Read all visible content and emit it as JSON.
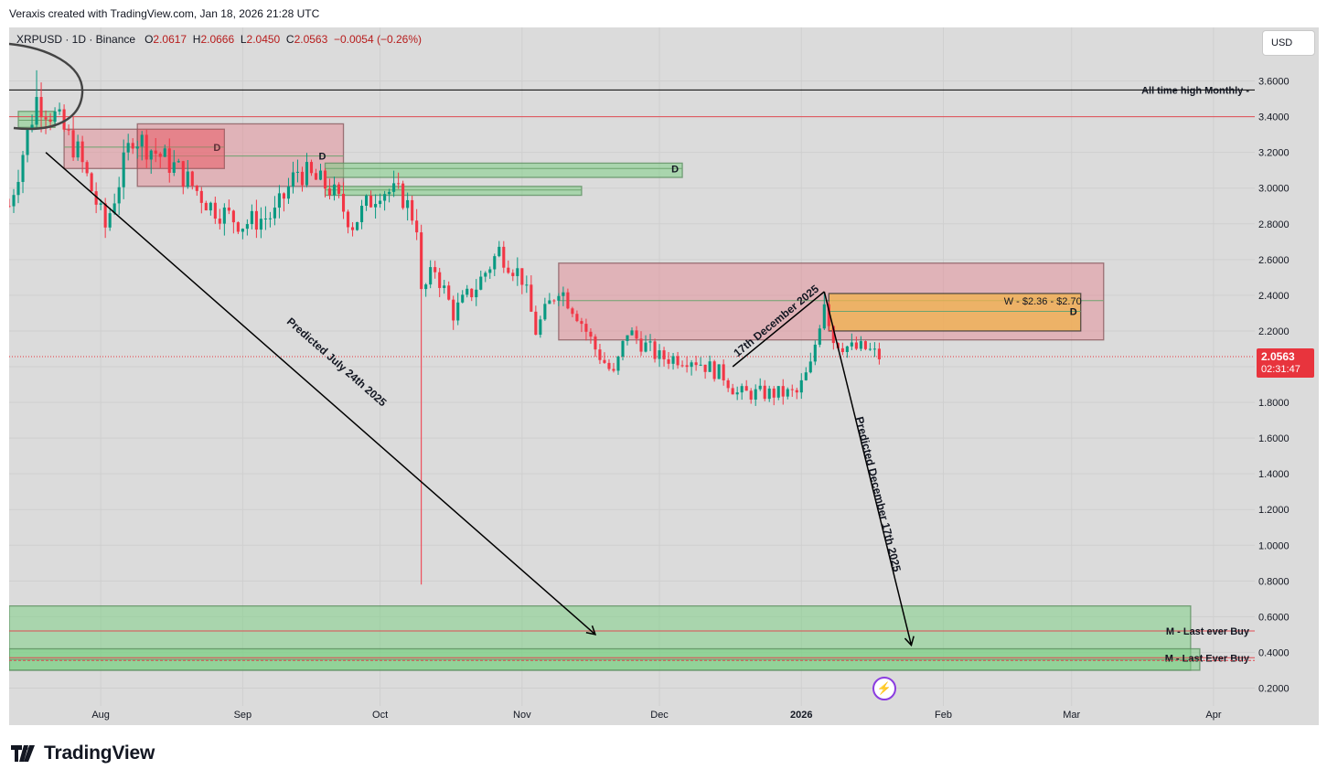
{
  "header": {
    "credit": "Veraxis created with TradingView.com, Jan 18, 2026 21:28 UTC"
  },
  "symbol": {
    "name": "XRPUSD · 1D · Binance",
    "open_label": "O",
    "open": "2.0617",
    "high_label": "H",
    "high": "2.0666",
    "low_label": "L",
    "low": "2.0450",
    "close_label": "C",
    "close": "2.0563",
    "change": "−0.0054 (−0.26%)"
  },
  "currency_button": "USD",
  "last_price": {
    "price": "2.0563",
    "countdown": "02:31:47"
  },
  "footer": {
    "brand": "TradingView"
  },
  "colors": {
    "background": "#dbdbdb",
    "up_candle": "#089981",
    "down_candle": "#f23645",
    "supply_zone": "#e7838f",
    "demand_zone": "#7fcf86",
    "order_block": "#f2b14c",
    "price_tag": "#e8343d"
  },
  "chart_data": {
    "type": "candlestick",
    "y_axis": {
      "min": 0.1,
      "max": 3.9,
      "ticks": [
        "0.2000",
        "0.4000",
        "0.6000",
        "0.8000",
        "1.0000",
        "1.2000",
        "1.4000",
        "1.6000",
        "1.8000",
        "2.0000",
        "2.2000",
        "2.4000",
        "2.6000",
        "2.8000",
        "3.0000",
        "3.2000",
        "3.4000",
        "3.6000"
      ]
    },
    "x_axis": {
      "range": [
        "2025-07-12",
        "2026-04-10"
      ],
      "ticks": [
        {
          "date": "2025-08-01",
          "label": "Aug",
          "bold": false
        },
        {
          "date": "2025-09-01",
          "label": "Sep",
          "bold": false
        },
        {
          "date": "2025-10-01",
          "label": "Oct",
          "bold": false
        },
        {
          "date": "2025-11-01",
          "label": "Nov",
          "bold": false
        },
        {
          "date": "2025-12-01",
          "label": "Dec",
          "bold": false
        },
        {
          "date": "2026-01-01",
          "label": "2026",
          "bold": true
        },
        {
          "date": "2026-02-01",
          "label": "Feb",
          "bold": false
        },
        {
          "date": "2026-03-01",
          "label": "Mar",
          "bold": false
        },
        {
          "date": "2026-04-01",
          "label": "Apr",
          "bold": false
        }
      ]
    },
    "anchors": [
      {
        "date": "2025-07-12",
        "close": 2.9
      },
      {
        "date": "2025-07-15",
        "close": 3.2
      },
      {
        "date": "2025-07-18",
        "close": 3.5
      },
      {
        "date": "2025-07-22",
        "close": 3.4
      },
      {
        "date": "2025-07-27",
        "close": 3.2
      },
      {
        "date": "2025-08-02",
        "close": 2.78
      },
      {
        "date": "2025-08-08",
        "close": 3.3
      },
      {
        "date": "2025-08-13",
        "close": 3.2
      },
      {
        "date": "2025-08-18",
        "close": 3.1
      },
      {
        "date": "2025-08-25",
        "close": 2.9
      },
      {
        "date": "2025-09-01",
        "close": 2.8
      },
      {
        "date": "2025-09-08",
        "close": 2.85
      },
      {
        "date": "2025-09-13",
        "close": 3.1
      },
      {
        "date": "2025-09-20",
        "close": 3.0
      },
      {
        "date": "2025-09-25",
        "close": 2.8
      },
      {
        "date": "2025-10-01",
        "close": 3.0
      },
      {
        "date": "2025-10-06",
        "close": 2.95
      },
      {
        "date": "2025-10-09",
        "close": 2.8
      },
      {
        "date": "2025-10-10",
        "close": 2.4
      },
      {
        "date": "2025-10-13",
        "close": 2.55
      },
      {
        "date": "2025-10-17",
        "close": 2.3
      },
      {
        "date": "2025-10-22",
        "close": 2.45
      },
      {
        "date": "2025-10-27",
        "close": 2.65
      },
      {
        "date": "2025-11-01",
        "close": 2.5
      },
      {
        "date": "2025-11-04",
        "close": 2.2
      },
      {
        "date": "2025-11-09",
        "close": 2.45
      },
      {
        "date": "2025-11-13",
        "close": 2.3
      },
      {
        "date": "2025-11-17",
        "close": 2.1
      },
      {
        "date": "2025-11-21",
        "close": 1.95
      },
      {
        "date": "2025-11-24",
        "close": 2.2
      },
      {
        "date": "2025-12-01",
        "close": 2.05
      },
      {
        "date": "2025-12-08",
        "close": 2.05
      },
      {
        "date": "2025-12-15",
        "close": 1.95
      },
      {
        "date": "2025-12-18",
        "close": 1.85
      },
      {
        "date": "2025-12-25",
        "close": 1.85
      },
      {
        "date": "2025-12-31",
        "close": 1.85
      },
      {
        "date": "2026-01-03",
        "close": 2.0
      },
      {
        "date": "2026-01-06",
        "close": 2.38
      },
      {
        "date": "2026-01-08",
        "close": 2.15
      },
      {
        "date": "2026-01-12",
        "close": 2.1
      },
      {
        "date": "2026-01-15",
        "close": 2.1
      },
      {
        "date": "2026-01-18",
        "close": 2.0563
      }
    ],
    "wick_extremes": [
      {
        "date": "2025-07-18",
        "high": 3.66
      },
      {
        "date": "2025-10-10",
        "low": 0.78
      },
      {
        "date": "2026-01-06",
        "high": 2.42
      }
    ],
    "zones": [
      {
        "kind": "supply",
        "from": "2025-08-09",
        "to": "2025-09-23",
        "top": 3.36,
        "bottom": 3.01,
        "label": "D",
        "label_at": "2025-09-20",
        "mid": 3.18
      },
      {
        "kind": "supply",
        "from": "2025-07-24",
        "to": "2025-08-09",
        "top": 3.33,
        "bottom": 3.11,
        "label": "",
        "mid": 3.23
      },
      {
        "kind": "supply",
        "from": "2025-08-09",
        "to": "2025-08-28",
        "top": 3.33,
        "bottom": 3.11,
        "label": "D",
        "label_at": "2025-08-28",
        "mid": 3.23
      },
      {
        "kind": "demand",
        "from": "2025-09-19",
        "to": "2025-12-06",
        "top": 3.14,
        "bottom": 3.06,
        "label": "D",
        "label_at": "2025-12-06",
        "mid": 3.11
      },
      {
        "kind": "demand",
        "from": "2025-09-19",
        "to": "2025-11-14",
        "top": 3.01,
        "bottom": 2.96,
        "label": "",
        "mid": 2.99
      },
      {
        "kind": "demand",
        "from": "2025-07-14",
        "to": "2025-07-22",
        "top": 3.43,
        "bottom": 3.34,
        "label": "",
        "mid": 3.38
      },
      {
        "kind": "supply",
        "from": "2025-11-09",
        "to": "2026-03-08",
        "top": 2.58,
        "bottom": 2.15,
        "label": "",
        "mid": 2.37
      },
      {
        "kind": "order_block",
        "from": "2026-01-07",
        "to": "2026-03-03",
        "top": 2.41,
        "bottom": 2.2,
        "label": "D",
        "label_at": "2026-03-03",
        "mid": 2.31
      },
      {
        "kind": "demand",
        "from": "2025-07-12",
        "to": "2026-03-27",
        "top": 0.66,
        "bottom": 0.3,
        "label": "",
        "mid": 0.52
      },
      {
        "kind": "demand",
        "from": "2025-07-12",
        "to": "2026-03-29",
        "top": 0.42,
        "bottom": 0.3,
        "label": "",
        "mid": 0.36
      }
    ],
    "horizontal_lines": [
      {
        "price": 3.55,
        "color": "#000000",
        "label": "All time high Monthly -"
      },
      {
        "price": 3.4,
        "color": "#e04b53",
        "label": ""
      },
      {
        "price": 0.52,
        "color": "#e04b53",
        "label": "M - Last ever Buy"
      },
      {
        "price": 0.37,
        "color": "#e04b53",
        "label": "M - Last Ever Buy"
      }
    ],
    "zone_text": "W - $2.36 - $2.70",
    "arrows": [
      {
        "from": {
          "date": "2025-07-20",
          "price": 3.2
        },
        "to": {
          "date": "2025-11-17",
          "price": 0.5
        },
        "label": "Predicted July 24th 2025"
      },
      {
        "from": {
          "date": "2025-12-17",
          "price": 2.0
        },
        "to": {
          "date": "2026-01-06",
          "price": 2.42
        },
        "label": "17th December 2025"
      },
      {
        "from": {
          "date": "2026-01-06",
          "price": 2.42
        },
        "to": {
          "date": "2026-01-25",
          "price": 0.44
        },
        "label": "Predicted December 17th 2025"
      }
    ]
  }
}
